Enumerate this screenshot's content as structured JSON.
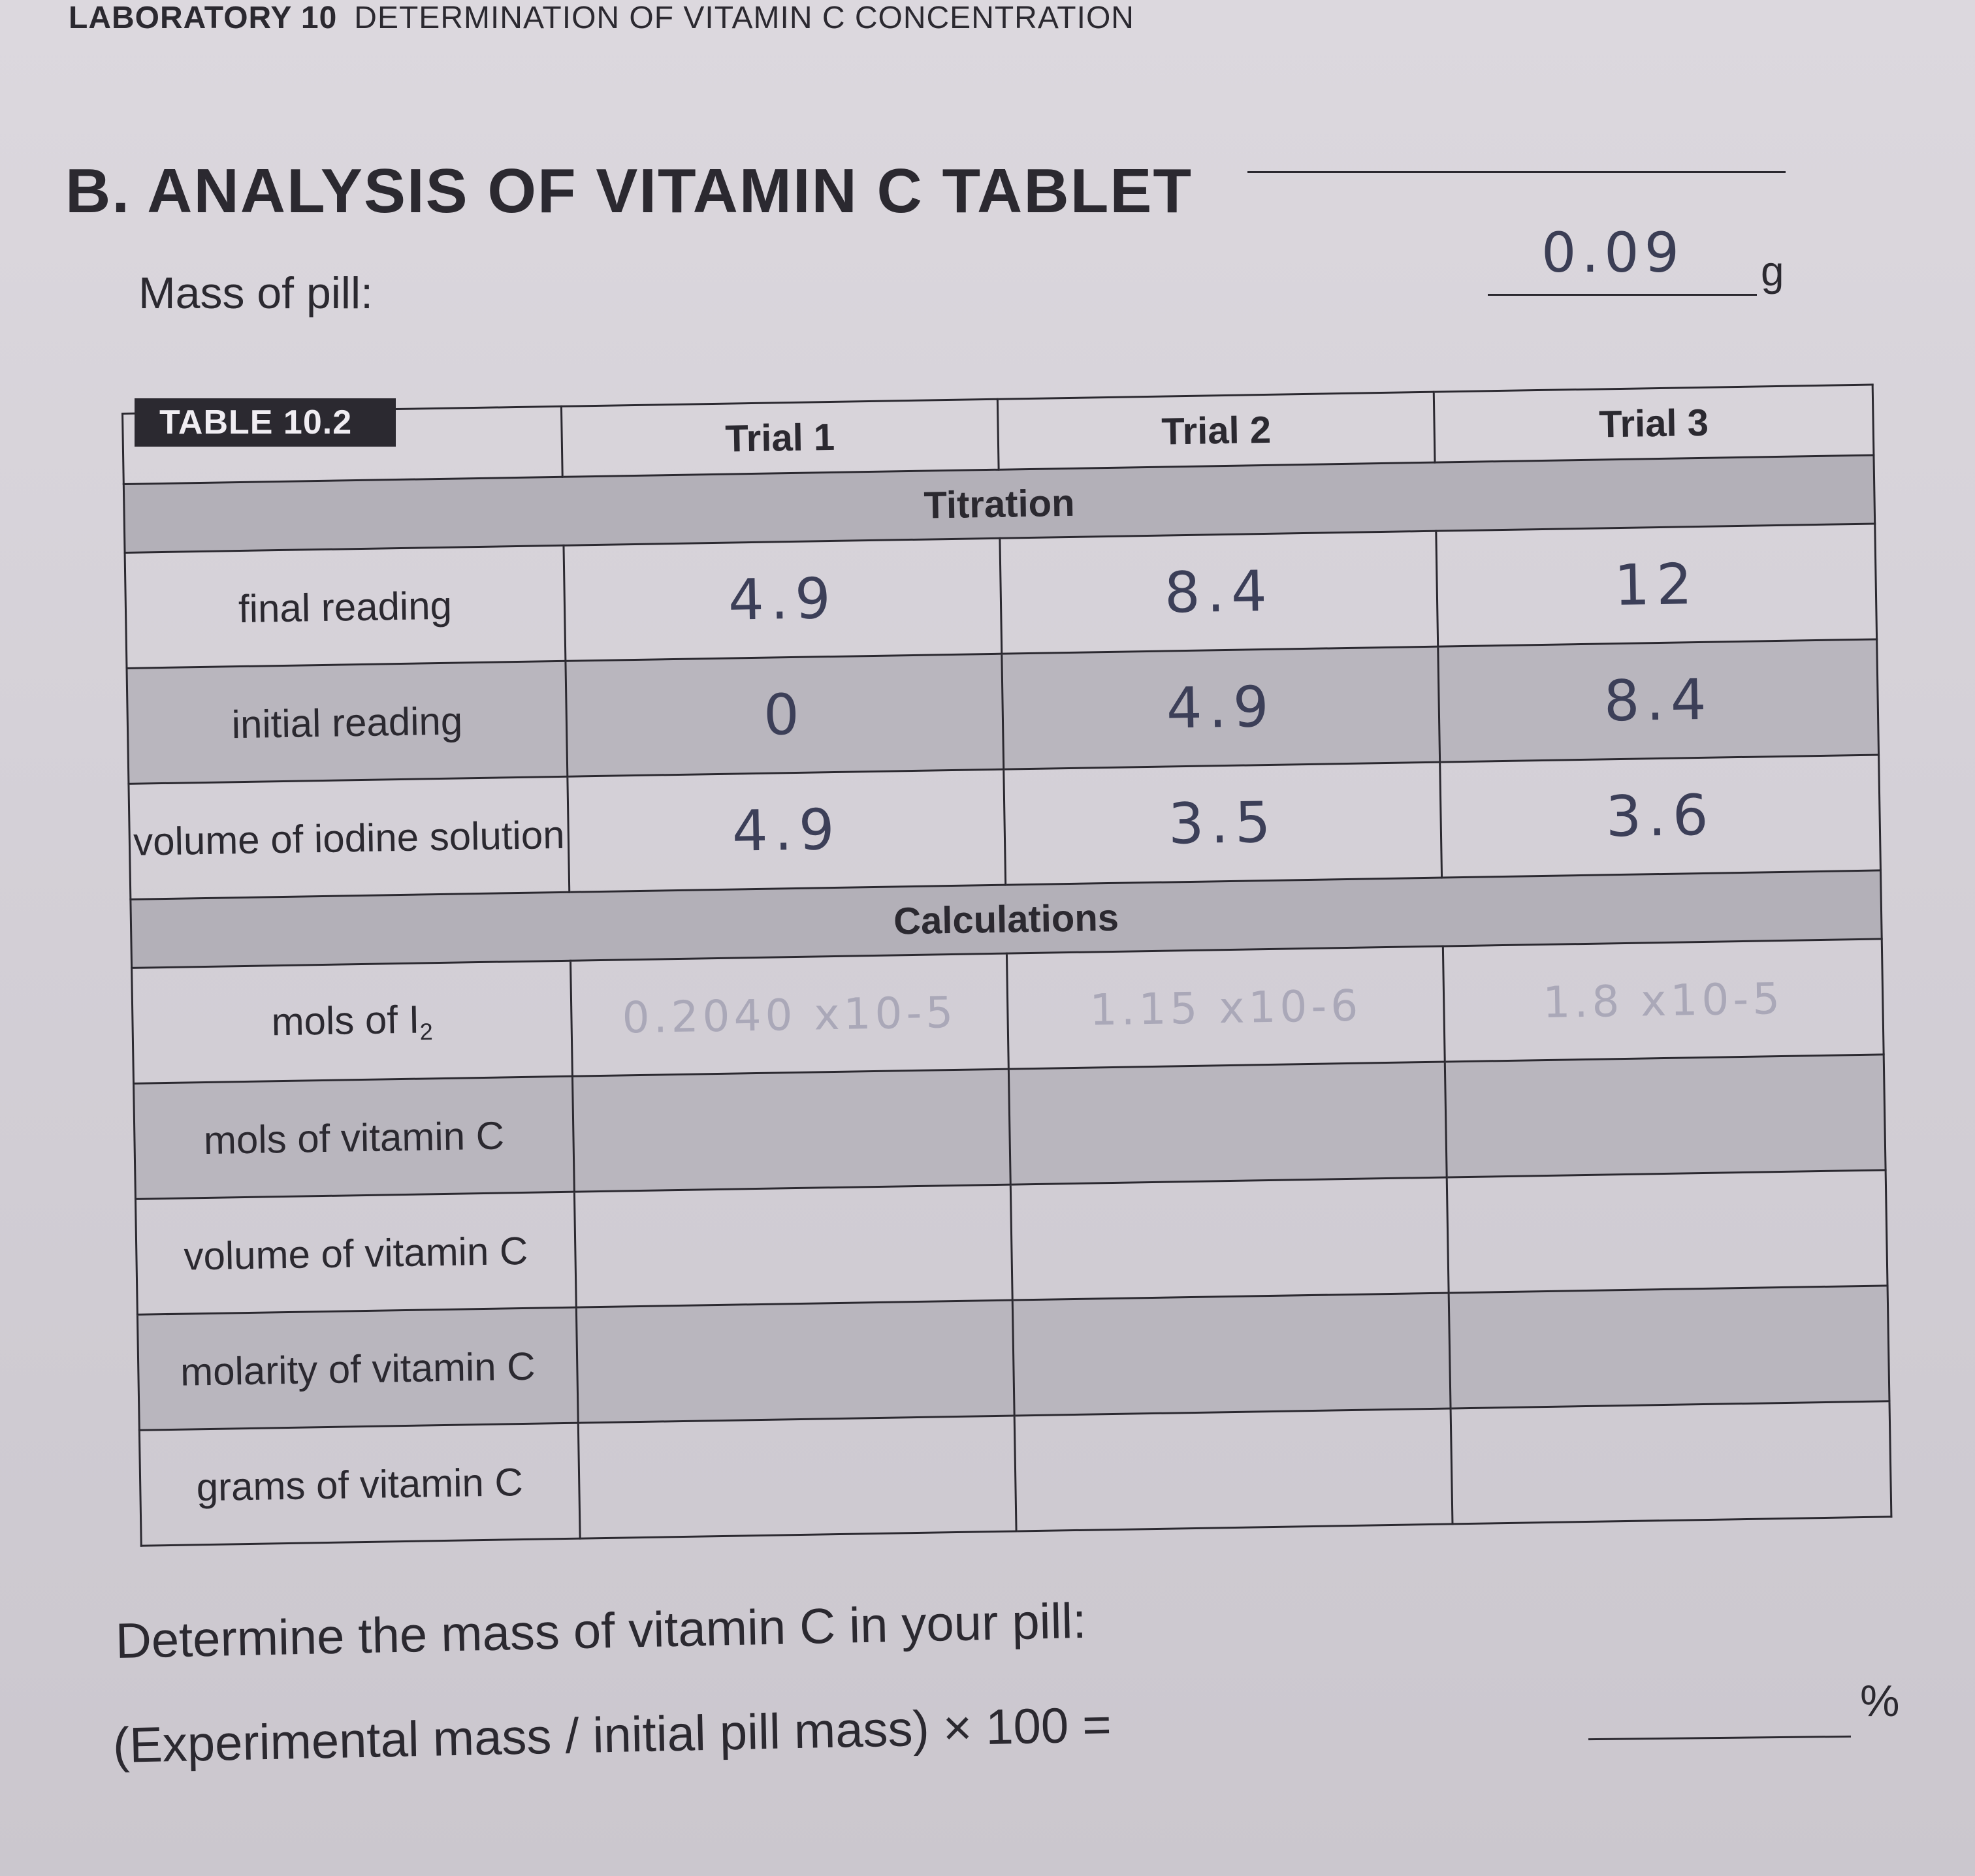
{
  "header": {
    "lab_number": "LABORATORY 10",
    "lab_title": "DETERMINATION OF VITAMIN C CONCENTRATION"
  },
  "section": {
    "title": "B. ANALYSIS OF VITAMIN C TABLET"
  },
  "mass_of_pill": {
    "label": "Mass of pill:",
    "value": "0.09",
    "unit": "g"
  },
  "table": {
    "tag": "TABLE 10.2",
    "columns": [
      "",
      "Trial 1",
      "Trial 2",
      "Trial 3"
    ],
    "titration_header": "Titration",
    "titration_rows": [
      {
        "label": "final reading",
        "values": [
          "4.9",
          "8.4",
          "12"
        ]
      },
      {
        "label": "initial reading",
        "values": [
          "0",
          "4.9",
          "8.4"
        ]
      },
      {
        "label": "volume of iodine solution",
        "values": [
          "4.9",
          "3.5",
          "3.6"
        ]
      }
    ],
    "calculations_header": "Calculations",
    "mols_i2": {
      "label_main": "mols of I",
      "label_sub": "2",
      "values": [
        "0.2040 x10-5",
        "1.15 x10-6",
        "1.8 x10-5"
      ]
    },
    "calculation_rows": [
      {
        "label": "mols of vitamin C",
        "values": [
          "",
          "",
          ""
        ]
      },
      {
        "label": "volume of vitamin C",
        "values": [
          "",
          "",
          ""
        ]
      },
      {
        "label": "molarity of vitamin C",
        "values": [
          "",
          "",
          ""
        ]
      },
      {
        "label": "grams of vitamin C",
        "values": [
          "",
          "",
          ""
        ]
      }
    ]
  },
  "footer": {
    "determine": "Determine the mass of vitamin C in your pill:",
    "formula": "(Experimental mass / initial pill mass) × 100 =",
    "percent_unit": "%"
  }
}
